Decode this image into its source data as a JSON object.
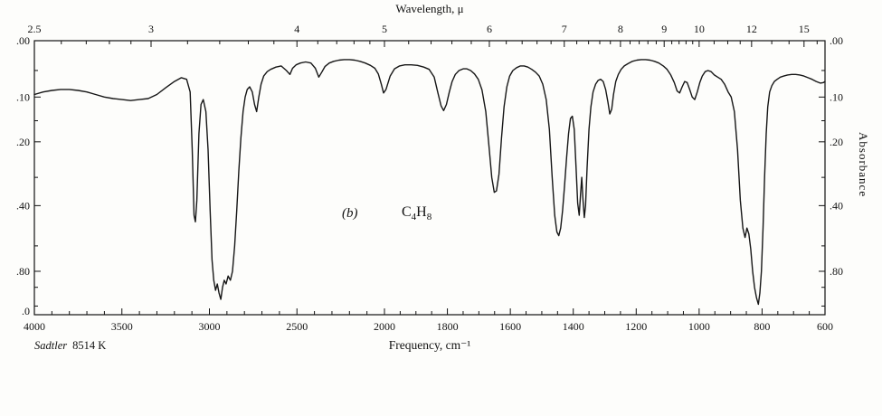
{
  "figure": {
    "top_axis_label": "Wavelength, μ",
    "bottom_axis_label": "Frequency, cm⁻¹",
    "right_axis_label": "Absorbance",
    "panel_label": "(b)",
    "formula": {
      "el1": "C",
      "sub1": "4",
      "el2": "H",
      "sub2": "8"
    },
    "source_name": "Sadtler",
    "source_number": "8514 K"
  },
  "chart_data": {
    "type": "line",
    "title": "Infrared absorption spectrum (b) C4H8, Sadtler 8514 K",
    "xlabel": "Frequency, cm⁻¹",
    "x2label": "Wavelength, μ",
    "ylabel": "Absorbance",
    "x_scale": {
      "type": "dual-linear-wavenumber",
      "range": [
        4000,
        600
      ],
      "break_at": 2000,
      "note": "linear 4000-2000 on left 44% of axis, linear 2000-600 on right 56%"
    },
    "y_scale": {
      "type": "absorbance-labels-on-linear-transmittance",
      "top_absorbance": 0.0,
      "note": "vertical position linear in transmittance T=10^-A; T=1 at top, T=0 at bottom"
    },
    "grid": false,
    "legend": "none",
    "bottom_ticks_major": [
      4000,
      3500,
      3000,
      2500,
      2000,
      1800,
      1600,
      1400,
      1200,
      1000,
      800,
      600
    ],
    "bottom_ticks_minor": [
      3900,
      3800,
      3700,
      3600,
      3400,
      3300,
      3200,
      3100,
      2900,
      2800,
      2700,
      2600,
      2400,
      2300,
      2200,
      2100,
      1950,
      1900,
      1850,
      1750,
      1700,
      1650,
      1550,
      1500,
      1450,
      1350,
      1300,
      1250,
      1150,
      1100,
      1050,
      950,
      900,
      850,
      750,
      700,
      650
    ],
    "top_ticks_major": [
      2.5,
      3,
      4,
      5,
      6,
      7,
      8,
      9,
      10,
      12,
      15
    ],
    "top_ticks_minor": [
      2.6,
      2.7,
      2.8,
      2.9,
      3.2,
      3.4,
      3.6,
      3.8,
      4.2,
      4.4,
      4.6,
      4.8,
      5.2,
      5.4,
      5.6,
      5.8,
      6.2,
      6.4,
      6.6,
      6.8,
      7.2,
      7.4,
      7.6,
      7.8,
      8.2,
      8.4,
      8.6,
      8.8,
      9.2,
      9.4,
      9.6,
      9.8,
      10.5,
      11,
      11.5,
      13,
      14,
      16
    ],
    "y_tick_labels": [
      {
        "text": ".00",
        "A": 0.0
      },
      {
        "text": ".10",
        "A": 0.1
      },
      {
        "text": ".20",
        "A": 0.2
      },
      {
        "text": ".40",
        "A": 0.4
      },
      {
        "text": ".80",
        "A": 0.8
      }
    ],
    "y_left_extra_label": {
      "text": ".0",
      "A": 1.9
    },
    "y_ticks_minor_A": [
      0.05,
      0.15,
      0.3,
      0.6,
      1.0,
      1.5
    ],
    "annotations": [
      {
        "text": "(b)",
        "style": "italic"
      },
      {
        "text": "C4H8",
        "style": "formula"
      }
    ],
    "series": [
      {
        "name": "C4H8 absorbance trace",
        "points": [
          [
            4000,
            0.095
          ],
          [
            3950,
            0.09
          ],
          [
            3900,
            0.087
          ],
          [
            3850,
            0.085
          ],
          [
            3800,
            0.085
          ],
          [
            3750,
            0.087
          ],
          [
            3700,
            0.09
          ],
          [
            3650,
            0.095
          ],
          [
            3600,
            0.1
          ],
          [
            3550,
            0.103
          ],
          [
            3500,
            0.105
          ],
          [
            3450,
            0.107
          ],
          [
            3400,
            0.105
          ],
          [
            3350,
            0.103
          ],
          [
            3300,
            0.095
          ],
          [
            3250,
            0.082
          ],
          [
            3200,
            0.07
          ],
          [
            3160,
            0.063
          ],
          [
            3130,
            0.066
          ],
          [
            3110,
            0.09
          ],
          [
            3098,
            0.22
          ],
          [
            3088,
            0.44
          ],
          [
            3080,
            0.47
          ],
          [
            3072,
            0.38
          ],
          [
            3060,
            0.18
          ],
          [
            3048,
            0.115
          ],
          [
            3035,
            0.105
          ],
          [
            3020,
            0.13
          ],
          [
            3008,
            0.22
          ],
          [
            2996,
            0.42
          ],
          [
            2985,
            0.7
          ],
          [
            2975,
            0.9
          ],
          [
            2965,
            1.05
          ],
          [
            2955,
            0.95
          ],
          [
            2945,
            1.1
          ],
          [
            2935,
            1.25
          ],
          [
            2925,
            1.0
          ],
          [
            2915,
            0.9
          ],
          [
            2905,
            0.95
          ],
          [
            2893,
            0.85
          ],
          [
            2880,
            0.9
          ],
          [
            2868,
            0.8
          ],
          [
            2856,
            0.6
          ],
          [
            2844,
            0.42
          ],
          [
            2832,
            0.28
          ],
          [
            2820,
            0.19
          ],
          [
            2808,
            0.13
          ],
          [
            2796,
            0.1
          ],
          [
            2784,
            0.085
          ],
          [
            2770,
            0.08
          ],
          [
            2755,
            0.09
          ],
          [
            2742,
            0.115
          ],
          [
            2730,
            0.13
          ],
          [
            2718,
            0.1
          ],
          [
            2705,
            0.075
          ],
          [
            2690,
            0.06
          ],
          [
            2670,
            0.052
          ],
          [
            2650,
            0.048
          ],
          [
            2620,
            0.044
          ],
          [
            2590,
            0.042
          ],
          [
            2560,
            0.05
          ],
          [
            2540,
            0.057
          ],
          [
            2525,
            0.046
          ],
          [
            2505,
            0.04
          ],
          [
            2480,
            0.037
          ],
          [
            2450,
            0.035
          ],
          [
            2420,
            0.037
          ],
          [
            2395,
            0.046
          ],
          [
            2375,
            0.062
          ],
          [
            2358,
            0.053
          ],
          [
            2340,
            0.043
          ],
          [
            2315,
            0.037
          ],
          [
            2290,
            0.034
          ],
          [
            2260,
            0.032
          ],
          [
            2230,
            0.031
          ],
          [
            2200,
            0.031
          ],
          [
            2170,
            0.032
          ],
          [
            2140,
            0.034
          ],
          [
            2110,
            0.037
          ],
          [
            2080,
            0.041
          ],
          [
            2055,
            0.046
          ],
          [
            2035,
            0.056
          ],
          [
            2018,
            0.075
          ],
          [
            2005,
            0.092
          ],
          [
            1995,
            0.085
          ],
          [
            1982,
            0.06
          ],
          [
            1968,
            0.047
          ],
          [
            1952,
            0.042
          ],
          [
            1935,
            0.04
          ],
          [
            1915,
            0.04
          ],
          [
            1895,
            0.041
          ],
          [
            1875,
            0.044
          ],
          [
            1858,
            0.048
          ],
          [
            1842,
            0.062
          ],
          [
            1830,
            0.092
          ],
          [
            1820,
            0.118
          ],
          [
            1812,
            0.128
          ],
          [
            1803,
            0.115
          ],
          [
            1794,
            0.09
          ],
          [
            1785,
            0.07
          ],
          [
            1775,
            0.057
          ],
          [
            1763,
            0.05
          ],
          [
            1750,
            0.047
          ],
          [
            1738,
            0.047
          ],
          [
            1726,
            0.05
          ],
          [
            1714,
            0.056
          ],
          [
            1702,
            0.066
          ],
          [
            1690,
            0.086
          ],
          [
            1678,
            0.13
          ],
          [
            1668,
            0.21
          ],
          [
            1659,
            0.3
          ],
          [
            1651,
            0.35
          ],
          [
            1644,
            0.345
          ],
          [
            1636,
            0.29
          ],
          [
            1628,
            0.19
          ],
          [
            1620,
            0.12
          ],
          [
            1611,
            0.08
          ],
          [
            1602,
            0.06
          ],
          [
            1592,
            0.05
          ],
          [
            1580,
            0.045
          ],
          [
            1568,
            0.042
          ],
          [
            1556,
            0.042
          ],
          [
            1544,
            0.044
          ],
          [
            1532,
            0.048
          ],
          [
            1520,
            0.053
          ],
          [
            1508,
            0.06
          ],
          [
            1497,
            0.075
          ],
          [
            1486,
            0.105
          ],
          [
            1476,
            0.17
          ],
          [
            1467,
            0.3
          ],
          [
            1459,
            0.44
          ],
          [
            1452,
            0.52
          ],
          [
            1446,
            0.54
          ],
          [
            1440,
            0.5
          ],
          [
            1434,
            0.42
          ],
          [
            1428,
            0.33
          ],
          [
            1421,
            0.24
          ],
          [
            1415,
            0.18
          ],
          [
            1409,
            0.145
          ],
          [
            1403,
            0.14
          ],
          [
            1397,
            0.17
          ],
          [
            1391,
            0.27
          ],
          [
            1386,
            0.39
          ],
          [
            1381,
            0.44
          ],
          [
            1377,
            0.36
          ],
          [
            1373,
            0.3
          ],
          [
            1369,
            0.38
          ],
          [
            1365,
            0.45
          ],
          [
            1361,
            0.4
          ],
          [
            1356,
            0.27
          ],
          [
            1350,
            0.17
          ],
          [
            1344,
            0.12
          ],
          [
            1337,
            0.09
          ],
          [
            1329,
            0.075
          ],
          [
            1321,
            0.068
          ],
          [
            1313,
            0.066
          ],
          [
            1305,
            0.07
          ],
          [
            1297,
            0.085
          ],
          [
            1290,
            0.11
          ],
          [
            1284,
            0.135
          ],
          [
            1278,
            0.125
          ],
          [
            1272,
            0.095
          ],
          [
            1265,
            0.07
          ],
          [
            1257,
            0.057
          ],
          [
            1248,
            0.048
          ],
          [
            1238,
            0.042
          ],
          [
            1226,
            0.038
          ],
          [
            1212,
            0.034
          ],
          [
            1198,
            0.032
          ],
          [
            1184,
            0.031
          ],
          [
            1170,
            0.031
          ],
          [
            1156,
            0.032
          ],
          [
            1142,
            0.034
          ],
          [
            1128,
            0.037
          ],
          [
            1114,
            0.042
          ],
          [
            1102,
            0.048
          ],
          [
            1090,
            0.058
          ],
          [
            1079,
            0.072
          ],
          [
            1070,
            0.088
          ],
          [
            1062,
            0.092
          ],
          [
            1054,
            0.08
          ],
          [
            1046,
            0.07
          ],
          [
            1038,
            0.072
          ],
          [
            1030,
            0.085
          ],
          [
            1022,
            0.1
          ],
          [
            1014,
            0.105
          ],
          [
            1006,
            0.09
          ],
          [
            998,
            0.072
          ],
          [
            990,
            0.06
          ],
          [
            981,
            0.052
          ],
          [
            972,
            0.05
          ],
          [
            962,
            0.052
          ],
          [
            952,
            0.058
          ],
          [
            941,
            0.062
          ],
          [
            930,
            0.066
          ],
          [
            919,
            0.075
          ],
          [
            908,
            0.09
          ],
          [
            898,
            0.1
          ],
          [
            888,
            0.13
          ],
          [
            878,
            0.22
          ],
          [
            869,
            0.38
          ],
          [
            861,
            0.5
          ],
          [
            854,
            0.55
          ],
          [
            848,
            0.5
          ],
          [
            842,
            0.53
          ],
          [
            836,
            0.62
          ],
          [
            830,
            0.8
          ],
          [
            824,
            1.0
          ],
          [
            818,
            1.2
          ],
          [
            812,
            1.42
          ],
          [
            807,
            1.1
          ],
          [
            802,
            0.8
          ],
          [
            797,
            0.5
          ],
          [
            792,
            0.3
          ],
          [
            787,
            0.18
          ],
          [
            782,
            0.12
          ],
          [
            776,
            0.09
          ],
          [
            769,
            0.078
          ],
          [
            761,
            0.07
          ],
          [
            752,
            0.066
          ],
          [
            742,
            0.062
          ],
          [
            731,
            0.06
          ],
          [
            719,
            0.058
          ],
          [
            706,
            0.057
          ],
          [
            693,
            0.057
          ],
          [
            680,
            0.058
          ],
          [
            667,
            0.06
          ],
          [
            654,
            0.063
          ],
          [
            641,
            0.066
          ],
          [
            628,
            0.07
          ],
          [
            615,
            0.073
          ],
          [
            605,
            0.072
          ],
          [
            600,
            0.07
          ]
        ]
      }
    ]
  }
}
